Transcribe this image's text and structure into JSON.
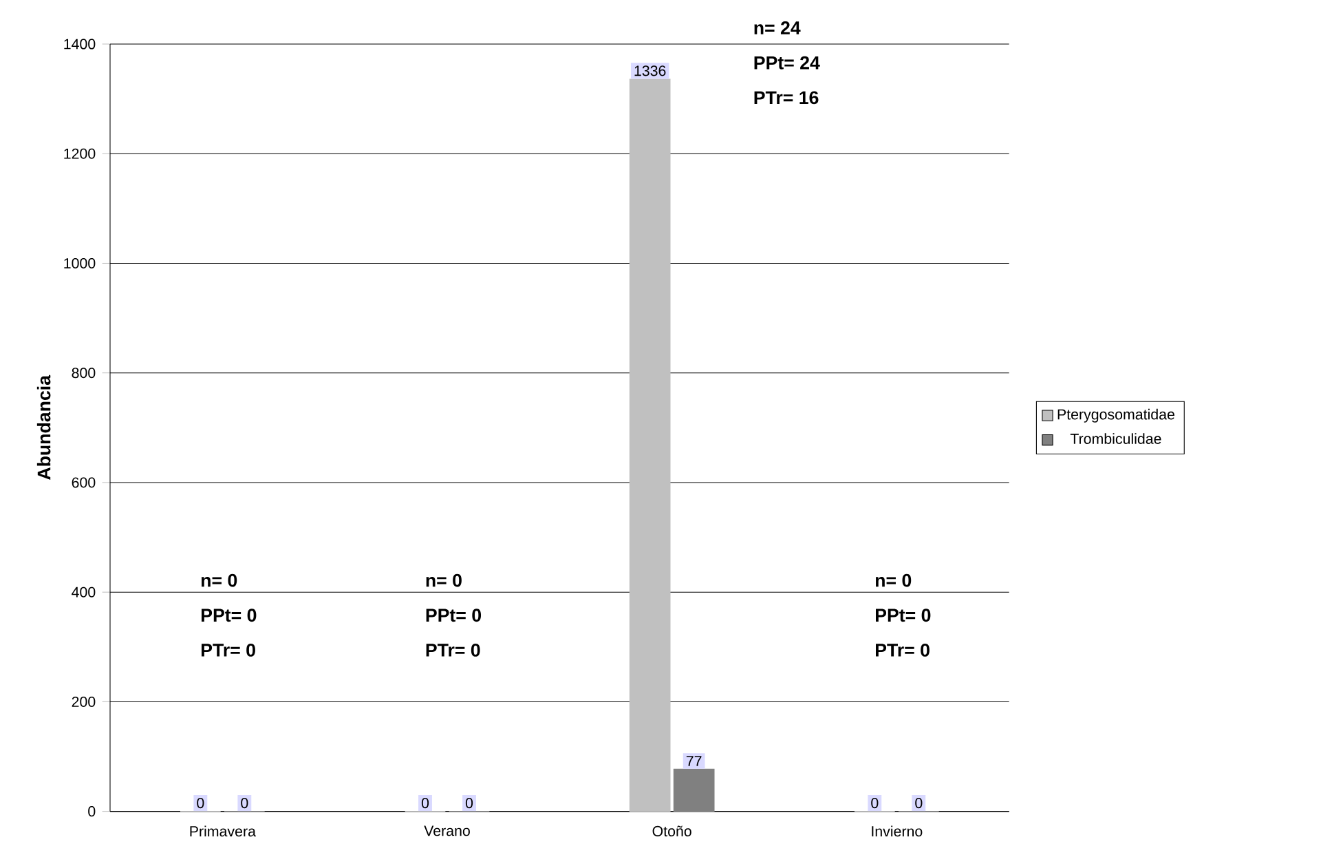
{
  "chart_data": {
    "type": "bar",
    "ylabel": "Abundancia",
    "categories": [
      "Primavera",
      "Verano",
      "Otoño",
      "Invierno"
    ],
    "series": [
      {
        "name": "Pterygosomatidae",
        "color": "#c0c0c0",
        "values": [
          0,
          0,
          1336,
          0
        ]
      },
      {
        "name": "Trombiculidae",
        "color": "#808080",
        "values": [
          0,
          0,
          77,
          0
        ]
      }
    ],
    "ylim": [
      0,
      1400
    ],
    "yticks": [
      0,
      200,
      400,
      600,
      800,
      1000,
      1200,
      1400
    ],
    "grid": "y",
    "legend": "right",
    "data_labels": true,
    "annotations": [
      "n= 0",
      "PPt= 0",
      "PTr= 0",
      "n= 0",
      "PPt= 0",
      "PTr= 0",
      "n= 24",
      "PPt= 24",
      "PTr= 16",
      "n= 0",
      "PPt= 0",
      "PTr= 0"
    ]
  }
}
